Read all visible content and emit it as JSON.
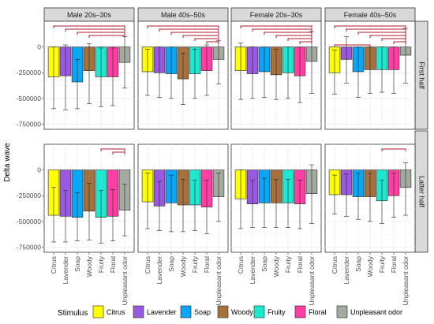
{
  "chart_data": {
    "type": "bar",
    "ylabel": "Delta wave",
    "y_ticks": [
      0,
      -250000,
      -500000,
      -750000
    ],
    "y_tick_labels": [
      "0",
      "-250000",
      "-500000",
      "-750000"
    ],
    "ylim": [
      -800000,
      250000
    ],
    "col_facets": [
      "Male 20s–30s",
      "Male 40s–50s",
      "Female 20s–30s",
      "Female 40s–50s"
    ],
    "row_facets": [
      "First half",
      "Latter half"
    ],
    "categories": [
      "Citrus",
      "Lavender",
      "Soap",
      "Woody",
      "Fruity",
      "Floral",
      "Unpleasant odor"
    ],
    "legend": {
      "title": "Stimulus",
      "position": "bottom",
      "items": [
        "Citrus",
        "Lavender",
        "Soap",
        "Woody",
        "Fruity",
        "Floral",
        "Unpleasant odor"
      ]
    },
    "colors": [
      "#ffff00",
      "#9b59e0",
      "#0ba6f5",
      "#a5723e",
      "#1de9d0",
      "#ff3fa4",
      "#a3aba0"
    ],
    "significance_color": "#b2182b",
    "grid": true,
    "panels": [
      {
        "row": "First half",
        "col": "Male 20s–30s",
        "means": [
          -290000,
          -280000,
          -340000,
          -230000,
          -290000,
          -290000,
          -150000
        ],
        "err_low": [
          -600000,
          -610000,
          -600000,
          -550000,
          -580000,
          -570000,
          -400000
        ],
        "err_high": [
          0,
          20000,
          -120000,
          30000,
          -10000,
          -10000,
          100000
        ],
        "brackets": [
          [
            0,
            6
          ],
          [
            1,
            6
          ],
          [
            2,
            6
          ],
          [
            3,
            6
          ]
        ]
      },
      {
        "row": "First half",
        "col": "Male 40s–50s",
        "means": [
          -240000,
          -250000,
          -260000,
          -310000,
          -260000,
          -230000,
          -120000
        ],
        "err_low": [
          -470000,
          -490000,
          -500000,
          -560000,
          -500000,
          -470000,
          -360000
        ],
        "err_high": [
          -20000,
          0,
          0,
          -60000,
          -20000,
          20000,
          60000
        ],
        "brackets": [
          [
            0,
            6
          ],
          [
            1,
            6
          ],
          [
            2,
            6
          ],
          [
            3,
            6
          ],
          [
            4,
            6
          ],
          [
            5,
            6
          ]
        ]
      },
      {
        "row": "First half",
        "col": "Female 20s–30s",
        "means": [
          -230000,
          -260000,
          -240000,
          -270000,
          -250000,
          -280000,
          -140000
        ],
        "err_low": [
          -510000,
          -500000,
          -490000,
          -510000,
          -500000,
          -540000,
          -450000
        ],
        "err_high": [
          40000,
          0,
          0,
          -20000,
          0,
          0,
          150000
        ],
        "brackets": [
          [
            0,
            6
          ],
          [
            1,
            6
          ],
          [
            2,
            6
          ],
          [
            3,
            6
          ],
          [
            4,
            6
          ],
          [
            5,
            6
          ]
        ]
      },
      {
        "row": "First half",
        "col": "Female 40s–50s",
        "means": [
          -250000,
          -120000,
          -240000,
          -220000,
          -220000,
          -220000,
          -80000
        ],
        "err_low": [
          -460000,
          -350000,
          -490000,
          -450000,
          -440000,
          -450000,
          -350000
        ],
        "err_high": [
          -30000,
          100000,
          0,
          0,
          0,
          0,
          180000
        ],
        "brackets": [
          [
            0,
            6
          ],
          [
            1,
            6
          ],
          [
            2,
            6
          ],
          [
            3,
            6
          ],
          [
            4,
            6
          ],
          [
            5,
            6
          ],
          [
            0,
            3
          ]
        ]
      },
      {
        "row": "Latter half",
        "col": "Male 20s–30s",
        "means": [
          -440000,
          -450000,
          -460000,
          -400000,
          -460000,
          -450000,
          -390000
        ],
        "err_low": [
          -700000,
          -700000,
          -690000,
          -680000,
          -710000,
          -690000,
          -640000
        ],
        "err_high": [
          -170000,
          -200000,
          -220000,
          -130000,
          -200000,
          -190000,
          -140000
        ],
        "brackets": [
          [
            4,
            6
          ],
          [
            5,
            6
          ]
        ]
      },
      {
        "row": "Latter half",
        "col": "Male 40s–50s",
        "means": [
          -310000,
          -350000,
          -320000,
          -340000,
          -340000,
          -360000,
          -260000
        ],
        "err_low": [
          -570000,
          -590000,
          -600000,
          -600000,
          -590000,
          -620000,
          -500000
        ],
        "err_high": [
          -30000,
          -110000,
          -50000,
          -90000,
          -100000,
          -100000,
          -30000
        ],
        "brackets": []
      },
      {
        "row": "Latter half",
        "col": "Female 20s–30s",
        "means": [
          -280000,
          -330000,
          -320000,
          -320000,
          -320000,
          -330000,
          -230000
        ],
        "err_low": [
          -570000,
          -560000,
          -560000,
          -560000,
          -560000,
          -570000,
          -520000
        ],
        "err_high": [
          0,
          -100000,
          -80000,
          -90000,
          -90000,
          -100000,
          50000
        ],
        "brackets": []
      },
      {
        "row": "Latter half",
        "col": "Female 40s–50s",
        "means": [
          -240000,
          -240000,
          -260000,
          -260000,
          -300000,
          -250000,
          -170000
        ],
        "err_low": [
          -430000,
          -450000,
          -480000,
          -500000,
          -520000,
          -460000,
          -440000
        ],
        "err_high": [
          -50000,
          -40000,
          -30000,
          -30000,
          -100000,
          -30000,
          70000
        ],
        "brackets": [
          [
            4,
            6
          ]
        ]
      }
    ]
  }
}
